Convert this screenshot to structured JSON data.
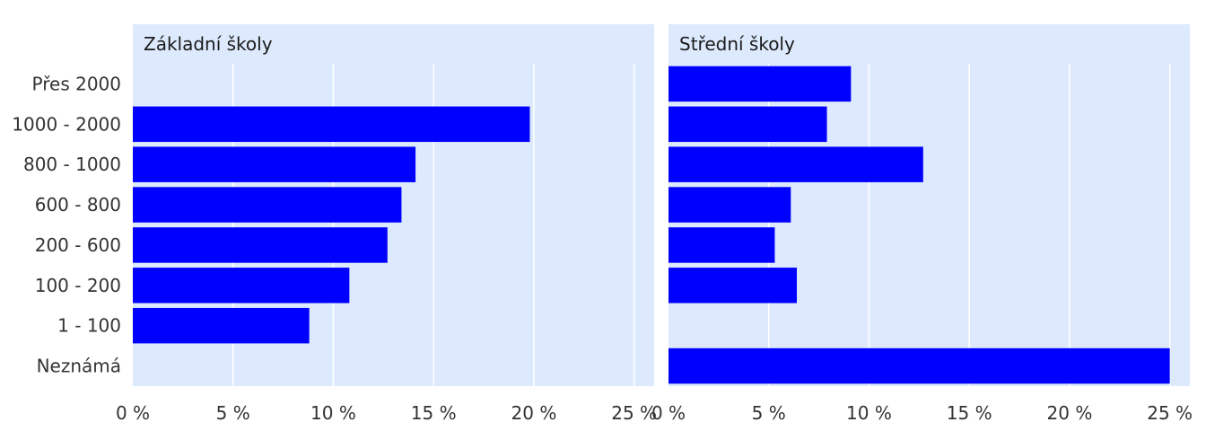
{
  "chart_data": {
    "type": "bar",
    "orientation": "horizontal",
    "categories": [
      "Přes 2000",
      "1000 - 2000",
      "800 - 1000",
      "600 - 800",
      "200 - 600",
      "100 - 200",
      "1 - 100",
      "Neznámá"
    ],
    "xlim": [
      0,
      26
    ],
    "x_ticks": [
      0,
      5,
      10,
      15,
      20,
      25
    ],
    "x_tick_labels": [
      "0 %",
      "5 %",
      "10 %",
      "15 %",
      "20 %",
      "25 %"
    ],
    "grid": true,
    "panels": [
      {
        "title": "Základní školy",
        "values": [
          null,
          19.8,
          14.1,
          13.4,
          12.7,
          10.8,
          8.8,
          null
        ]
      },
      {
        "title": "Střední školy",
        "values": [
          9.1,
          7.9,
          12.7,
          6.1,
          5.3,
          6.4,
          null,
          25.0
        ]
      }
    ],
    "colors": {
      "bar": "#0000ff",
      "panel_background": "#dde9fd",
      "gridline": "#ffffff"
    }
  }
}
